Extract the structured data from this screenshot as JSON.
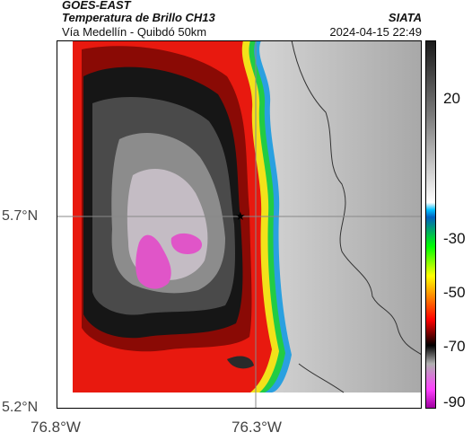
{
  "header": {
    "satellite": "GOES-EAST",
    "product": "Temperatura de Brillo CH13",
    "route": "Vía Medellín - Quibdó 50km",
    "source": "SIATA",
    "timestamp": "2024-04-15 22:49"
  },
  "axes": {
    "lat_labels": [
      "5.7°N",
      "5.2°N"
    ],
    "lon_labels": [
      "76.8°W",
      "76.3°W"
    ]
  },
  "colorbar": {
    "ticks": [
      "20",
      "-30",
      "-50",
      "-70",
      "-90"
    ],
    "colors": [
      "#1a1a1a",
      "#ffffff",
      "#00c0ff",
      "#00ff00",
      "#ffff00",
      "#ff0000",
      "#000000",
      "#b0b0b0",
      "#ff40ff"
    ]
  }
}
